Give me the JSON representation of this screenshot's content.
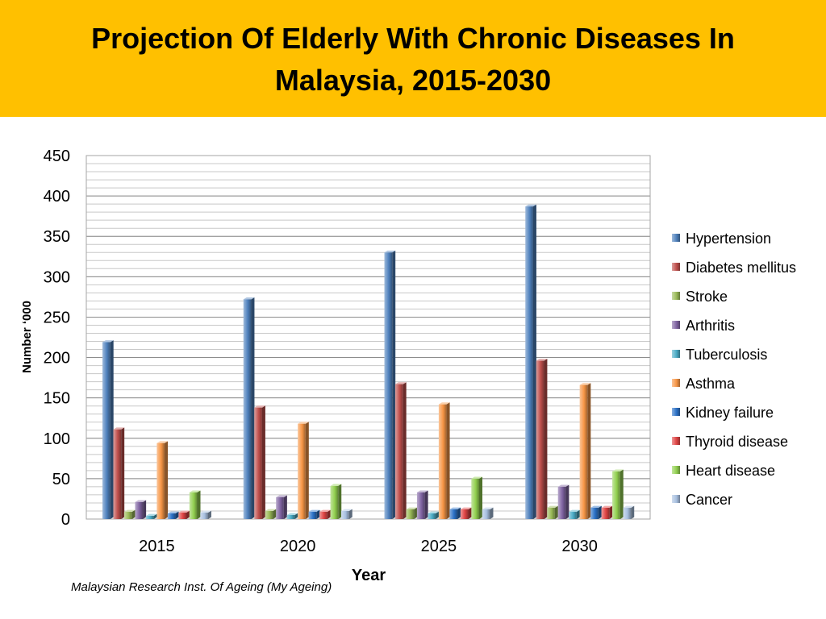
{
  "slide": {
    "title": "Projection Of  Elderly With Chronic Diseases In\nMalaysia, 2015-2030",
    "source": "Malaysian Research Inst. Of Ageing (My Ageing)"
  },
  "chart_data": {
    "type": "bar",
    "title": "",
    "xlabel": "Year",
    "ylabel": "Number ‘000",
    "ylim": [
      0,
      450
    ],
    "y_ticks": [
      0,
      50,
      100,
      150,
      200,
      250,
      300,
      350,
      400,
      450
    ],
    "grid": true,
    "legend_position": "right",
    "categories": [
      "2015",
      "2020",
      "2025",
      "2030"
    ],
    "series": [
      {
        "name": "Hypertension",
        "color": "#4f81bd",
        "values": [
          219,
          272,
          330,
          387
        ]
      },
      {
        "name": "Diabetes mellitus",
        "color": "#c0504d",
        "values": [
          111,
          138,
          167,
          196
        ]
      },
      {
        "name": "Stroke",
        "color": "#9bbb59",
        "values": [
          9,
          10,
          12,
          14
        ]
      },
      {
        "name": "Arthritis",
        "color": "#8064a2",
        "values": [
          21,
          27,
          33,
          40
        ]
      },
      {
        "name": "Tuberculosis",
        "color": "#4bacc6",
        "values": [
          4,
          5,
          7,
          9
        ]
      },
      {
        "name": "Asthma",
        "color": "#f79646",
        "values": [
          94,
          118,
          142,
          166
        ]
      },
      {
        "name": "Kidney failure",
        "color": "#2c72c7",
        "values": [
          7,
          9,
          12,
          14
        ]
      },
      {
        "name": "Thyroid disease",
        "color": "#e04545",
        "values": [
          8,
          9,
          12,
          14
        ]
      },
      {
        "name": "Heart disease",
        "color": "#92d050",
        "values": [
          33,
          41,
          50,
          59
        ]
      },
      {
        "name": "Cancer",
        "color": "#a8c0e0",
        "values": [
          8,
          10,
          12,
          14
        ]
      }
    ]
  }
}
